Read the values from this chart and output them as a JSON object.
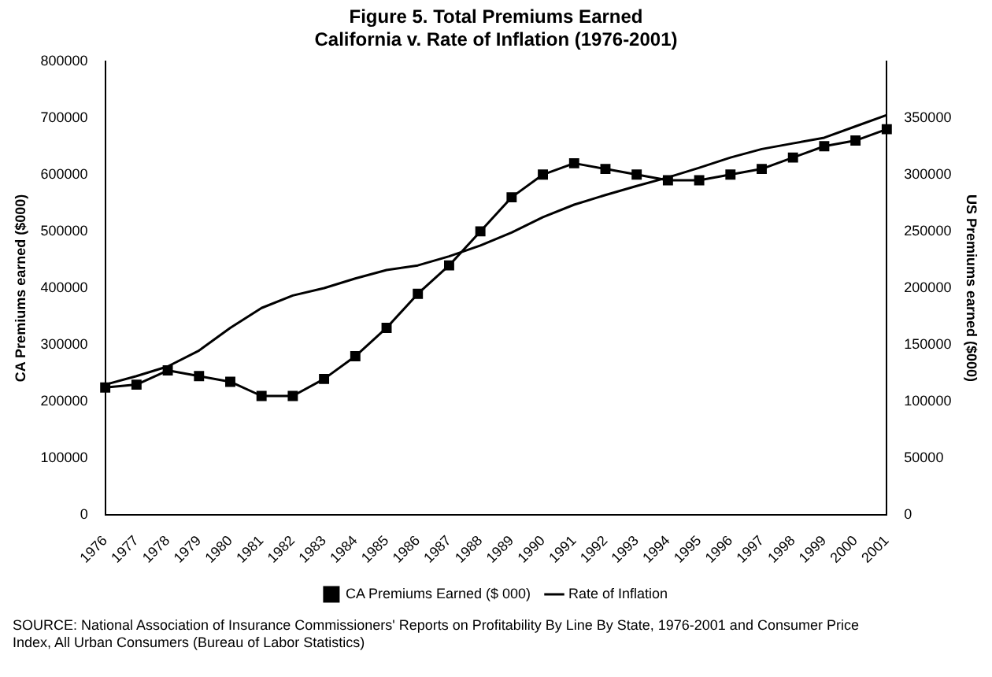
{
  "chart_data": {
    "type": "line",
    "title": "Figure 5. Total Premiums Earned",
    "subtitle": "California v. Rate of Inflation (1976-2001)",
    "ylabel": "CA Premiums earned ($000)",
    "y2label": "US Premiums earned ($000)",
    "categories": [
      "1976",
      "1977",
      "1978",
      "1979",
      "1980",
      "1981",
      "1982",
      "1983",
      "1984",
      "1985",
      "1986",
      "1987",
      "1988",
      "1989",
      "1990",
      "1991",
      "1992",
      "1993",
      "1994",
      "1995",
      "1996",
      "1997",
      "1998",
      "1999",
      "2000",
      "2001"
    ],
    "series": [
      {
        "name": "CA Premiums Earned ($ 000)",
        "color": "#000000",
        "marker": "square",
        "values": [
          225000,
          230000,
          255000,
          245000,
          235000,
          210000,
          210000,
          240000,
          280000,
          330000,
          390000,
          440000,
          500000,
          560000,
          600000,
          620000,
          610000,
          600000,
          590000,
          590000,
          600000,
          610000,
          630000,
          650000,
          660000,
          680000
        ]
      },
      {
        "name": "Rate of Inflation",
        "color": "#000000",
        "marker": "none",
        "values": [
          230000,
          245000,
          262000,
          290000,
          330000,
          365000,
          387000,
          400000,
          417000,
          432000,
          440000,
          456000,
          475000,
          498000,
          525000,
          547000,
          564000,
          580000,
          595000,
          612000,
          630000,
          645000,
          655000,
          665000,
          685000,
          705000
        ]
      }
    ],
    "ylim": [
      0,
      800000
    ],
    "yticks": [
      0,
      100000,
      200000,
      300000,
      400000,
      500000,
      600000,
      700000,
      800000
    ],
    "y2lim": [
      0,
      400000
    ],
    "y2ticks": [
      0,
      50000,
      100000,
      150000,
      200000,
      250000,
      300000,
      350000
    ],
    "grid": false,
    "legend": "bottom",
    "annotations": [
      "SOURCE: National Association of Insurance Commissioners' Reports on Profitability By Line By State, 1976-2001 and Consumer Price Index, All Urban Consumers (Bureau of Labor Statistics)"
    ]
  }
}
